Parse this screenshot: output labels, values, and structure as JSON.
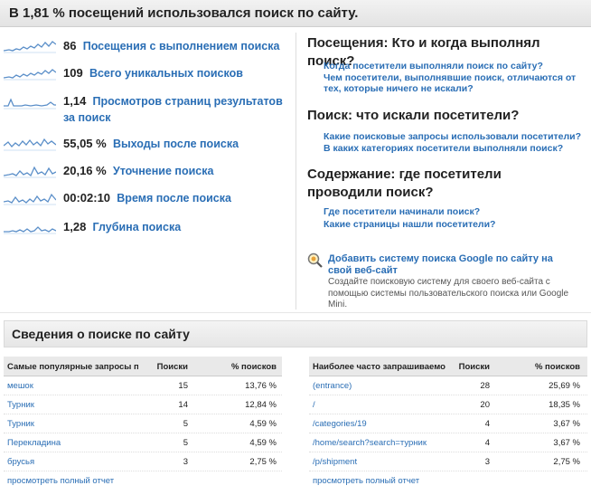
{
  "header": {
    "title": "В 1,81 % посещений использовался поиск по сайту."
  },
  "metrics": [
    {
      "value": "86",
      "label": "Посещения с выполнением поиска",
      "spark": "a"
    },
    {
      "value": "109",
      "label": "Всего уникальных поисков",
      "spark": "b"
    },
    {
      "value": "1,14",
      "label": "Просмотров страниц результатов за поиск",
      "spark": "c"
    },
    {
      "value": "55,05 %",
      "label": "Выходы после поиска",
      "spark": "d"
    },
    {
      "value": "20,16 %",
      "label": "Уточнение поиска",
      "spark": "e"
    },
    {
      "value": "00:02:10",
      "label": "Время после поиска",
      "spark": "f"
    },
    {
      "value": "1,28",
      "label": "Глубина поиска",
      "spark": "g"
    }
  ],
  "questions": [
    {
      "title": "Посещения: Кто и когда выполнял поиск?",
      "links": [
        "Когда посетители выполняли поиск по сайту?",
        "Чем посетители, выполнявшие поиск, отличаются от тех, которые ничего не искали?"
      ]
    },
    {
      "title": "Поиск: что искали посетители?",
      "links": [
        "Какие поисковые запросы использовали посетители?",
        "В каких категориях посетители выполняли поиск?"
      ]
    },
    {
      "title": "Содержание: где посетители проводили поиск?",
      "links": [
        "Где посетители начинали поиск?",
        "Какие страницы нашли посетители?"
      ]
    }
  ],
  "promo": {
    "link": "Добавить систему поиска Google по сайту на свой веб-сайт",
    "desc": "Создайте поисковую систему для своего веб-сайта с помощью системы пользовательского поиска или Google Mini."
  },
  "section": {
    "title": "Сведения о поиске по сайту"
  },
  "left_table": {
    "headers": [
      "Самые популярные запросы пр",
      "Поиски",
      "% поисков"
    ],
    "rows": [
      [
        "мешок",
        "15",
        "13,76 %"
      ],
      [
        "Турник",
        "14",
        "12,84 %"
      ],
      [
        "Турник",
        "5",
        "4,59 %"
      ],
      [
        "Перекладина",
        "5",
        "4,59 %"
      ],
      [
        "брусья",
        "3",
        "2,75 %"
      ]
    ],
    "footer": "просмотреть полный отчет"
  },
  "right_table": {
    "headers": [
      "Наиболее часто запрашиваемо",
      "Поиски",
      "% поисков"
    ],
    "rows": [
      [
        "(entrance)",
        "28",
        "25,69 %"
      ],
      [
        "/",
        "20",
        "18,35 %"
      ],
      [
        "/categories/19",
        "4",
        "3,67 %"
      ],
      [
        "/home/search?search=турник",
        "4",
        "3,67 %"
      ],
      [
        "/p/shipment",
        "3",
        "2,75 %"
      ]
    ],
    "footer": "просмотреть полный отчет"
  },
  "colors": {
    "link": "#2a6eb5",
    "spark": "#5b8fc9"
  },
  "icons": {
    "promo": "magnifier-icon"
  }
}
